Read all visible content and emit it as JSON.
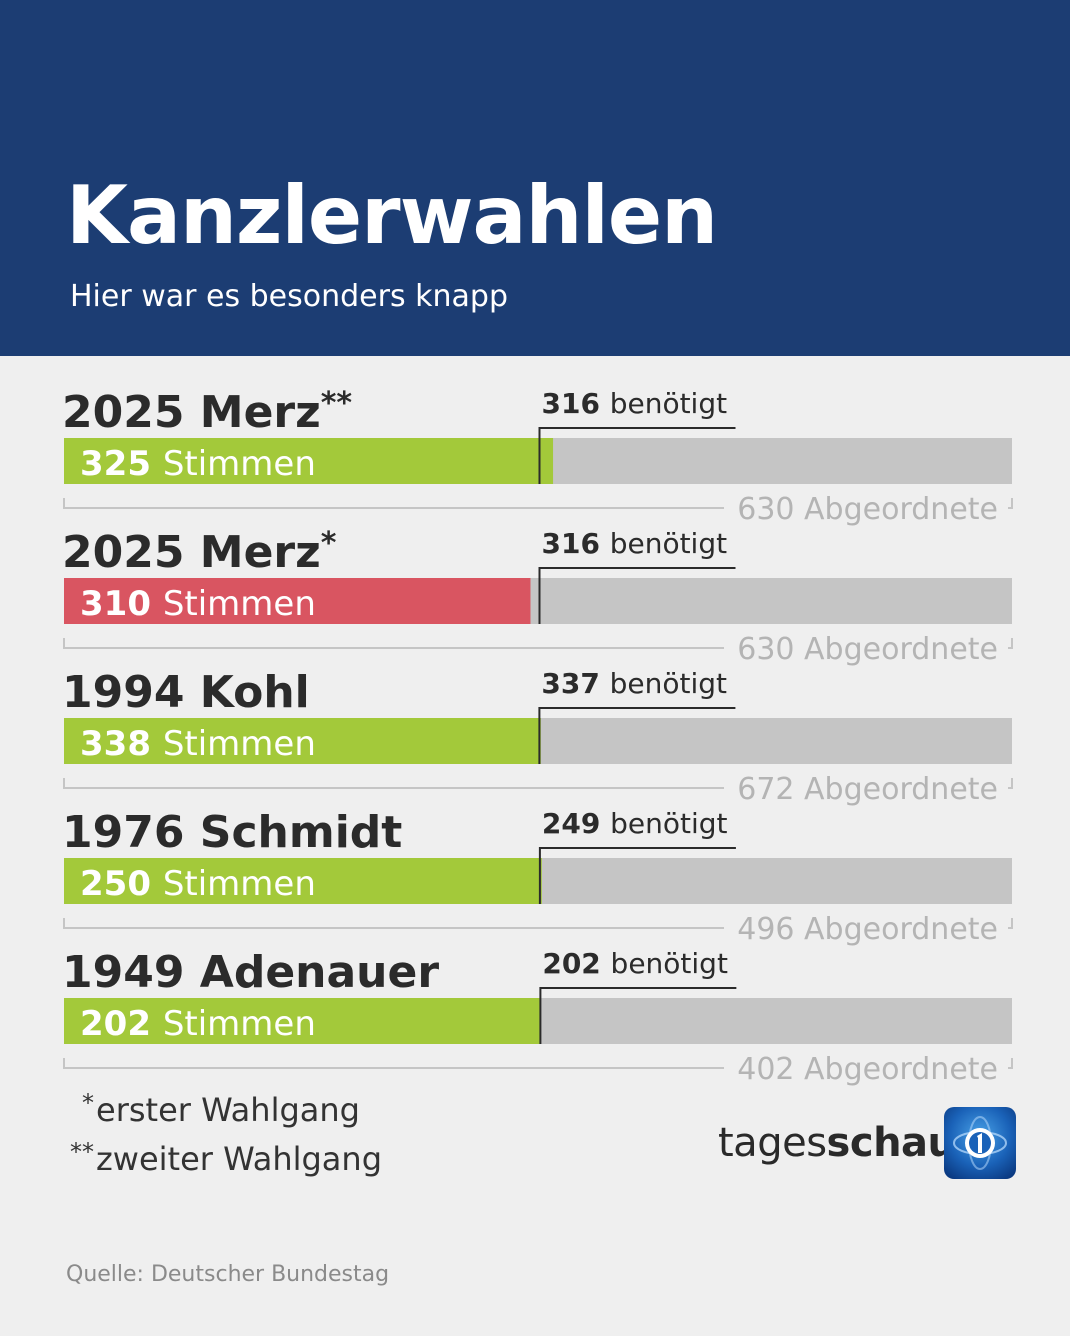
{
  "header": {
    "title": "Kanzlerwahlen",
    "subtitle": "Hier war es besonders knapp"
  },
  "colors": {
    "header_bg": "#1c3d73",
    "pass": "#a3c93a",
    "fail": "#d95561",
    "bar_track": "#c5c5c5",
    "background": "#efefef"
  },
  "chart_data": {
    "type": "bar",
    "orientation": "horizontal",
    "title": "",
    "rows": [
      {
        "label": "2025 Merz",
        "marker": "**",
        "votes": 325,
        "votes_label": "Stimmen",
        "needed": 316,
        "needed_label": "benötigt",
        "total": 630,
        "total_label": "Abgeordnete",
        "status": "pass"
      },
      {
        "label": "2025 Merz",
        "marker": "*",
        "votes": 310,
        "votes_label": "Stimmen",
        "needed": 316,
        "needed_label": "benötigt",
        "total": 630,
        "total_label": "Abgeordnete",
        "status": "fail"
      },
      {
        "label": "1994 Kohl",
        "marker": "",
        "votes": 338,
        "votes_label": "Stimmen",
        "needed": 337,
        "needed_label": "benötigt",
        "total": 672,
        "total_label": "Abgeordnete",
        "status": "pass"
      },
      {
        "label": "1976 Schmidt",
        "marker": "",
        "votes": 250,
        "votes_label": "Stimmen",
        "needed": 249,
        "needed_label": "benötigt",
        "total": 496,
        "total_label": "Abgeordnete",
        "status": "pass"
      },
      {
        "label": "1949 Adenauer",
        "marker": "",
        "votes": 202,
        "votes_label": "Stimmen",
        "needed": 202,
        "needed_label": "benötigt",
        "total": 402,
        "total_label": "Abgeordnete",
        "status": "pass"
      }
    ]
  },
  "footnotes": [
    {
      "mark": "*",
      "text": "erster Wahlgang"
    },
    {
      "mark": "**",
      "text": "zweiter Wahlgang"
    }
  ],
  "brand": {
    "part1": "tages",
    "part2": "schau",
    "logo_icon": "ard-one-globe-icon"
  },
  "source": "Quelle: Deutscher Bundestag"
}
